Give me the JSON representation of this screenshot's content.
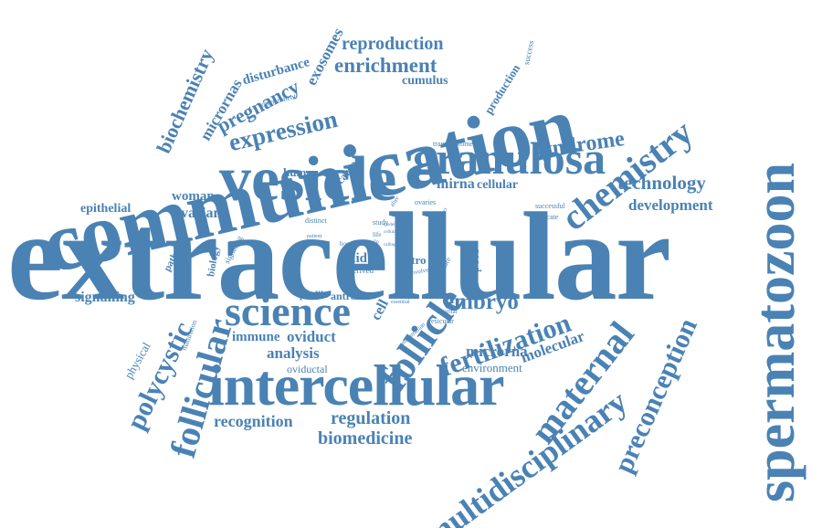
{
  "word_color": "#4a82b4",
  "background_color": "#ffffff",
  "words": [
    {
      "id": "extracellular",
      "text": "extracellular"
    },
    {
      "id": "communication",
      "text": "communication"
    },
    {
      "id": "spermatozoon",
      "text": "spermatozoon"
    },
    {
      "id": "intercellular",
      "text": "intercellular"
    },
    {
      "id": "vesicle",
      "text": "vesicle"
    },
    {
      "id": "granulosa",
      "text": "granulosa"
    },
    {
      "id": "chemistry",
      "text": "chemistry"
    },
    {
      "id": "science",
      "text": "science"
    },
    {
      "id": "follicle",
      "text": "follicle"
    },
    {
      "id": "follicular",
      "text": "follicular"
    },
    {
      "id": "maternal",
      "text": "maternal"
    },
    {
      "id": "multidisciplinary",
      "text": "multidisciplinary"
    },
    {
      "id": "preconception",
      "text": "preconception"
    },
    {
      "id": "fertilization",
      "text": "fertilization"
    },
    {
      "id": "polycystic",
      "text": "polycystic"
    },
    {
      "id": "expression",
      "text": "expression"
    },
    {
      "id": "enrichment",
      "text": "enrichment"
    },
    {
      "id": "reproduction",
      "text": "reproduction"
    },
    {
      "id": "syndrome",
      "text": "syndrome"
    },
    {
      "id": "embryo",
      "text": "embryo"
    },
    {
      "id": "technology",
      "text": "technology"
    },
    {
      "id": "development",
      "text": "development"
    },
    {
      "id": "biochemistry",
      "text": "biochemistry"
    },
    {
      "id": "micrornas",
      "text": "micrornas"
    },
    {
      "id": "pregnancy",
      "text": "pregnancy"
    },
    {
      "id": "disturbance",
      "text": "disturbance"
    },
    {
      "id": "exosomes",
      "text": "exosomes"
    },
    {
      "id": "cumulus",
      "text": "cumulus"
    },
    {
      "id": "production",
      "text": "production"
    },
    {
      "id": "success",
      "text": "success"
    },
    {
      "id": "compartment",
      "text": "compartment"
    },
    {
      "id": "transcriptome",
      "text": "transcriptome"
    },
    {
      "id": "mirna",
      "text": "mirna"
    },
    {
      "id": "cellular-1",
      "text": "cellular"
    },
    {
      "id": "human",
      "text": "human"
    },
    {
      "id": "cargo",
      "text": "cargo"
    },
    {
      "id": "woman",
      "text": "woman"
    },
    {
      "id": "ovarian",
      "text": "ovarian"
    },
    {
      "id": "epithelial",
      "text": "epithelial"
    },
    {
      "id": "pathway",
      "text": "pathway"
    },
    {
      "id": "biology",
      "text": "biology"
    },
    {
      "id": "signaling",
      "text": "signaling"
    },
    {
      "id": "signalling",
      "text": "signalling"
    },
    {
      "id": "physical",
      "text": "physical"
    },
    {
      "id": "maturation",
      "text": "maturation"
    },
    {
      "id": "profile",
      "text": "profile"
    },
    {
      "id": "antral",
      "text": "antral"
    },
    {
      "id": "fluid",
      "text": "fluid"
    },
    {
      "id": "derived",
      "text": "derived"
    },
    {
      "id": "vitro",
      "text": "vitro"
    },
    {
      "id": "involved",
      "text": "involved"
    },
    {
      "id": "culture",
      "text": "culture"
    },
    {
      "id": "pcos",
      "text": "pcos"
    },
    {
      "id": "cell",
      "text": "cell"
    },
    {
      "id": "immune",
      "text": "immune"
    },
    {
      "id": "oviduct",
      "text": "oviduct"
    },
    {
      "id": "analysis",
      "text": "analysis"
    },
    {
      "id": "oviductal",
      "text": "oviductal"
    },
    {
      "id": "recognition",
      "text": "recognition"
    },
    {
      "id": "regulation",
      "text": "regulation"
    },
    {
      "id": "biomedicine",
      "text": "biomedicine"
    },
    {
      "id": "microrna",
      "text": "microrna"
    },
    {
      "id": "environment",
      "text": "environment"
    },
    {
      "id": "molecular",
      "text": "molecular"
    },
    {
      "id": "mammalian",
      "text": "mammalian"
    },
    {
      "id": "vesicular",
      "text": "vesicular"
    },
    {
      "id": "external",
      "text": "external"
    },
    {
      "id": "essential",
      "text": "essential"
    },
    {
      "id": "successful",
      "text": "successful"
    },
    {
      "id": "indicate",
      "text": "indicate"
    },
    {
      "id": "ovaries",
      "text": "ovaries"
    },
    {
      "id": "contact",
      "text": "contact"
    },
    {
      "id": "distinct",
      "text": "distinct"
    },
    {
      "id": "patient",
      "text": "patient"
    },
    {
      "id": "study",
      "text": "study"
    },
    {
      "id": "boecs",
      "text": "boecs"
    },
    {
      "id": "role",
      "text": "role"
    },
    {
      "id": "life",
      "text": "life"
    },
    {
      "id": "alter",
      "text": "alter"
    },
    {
      "id": "model",
      "text": "model"
    },
    {
      "id": "cellular-2",
      "text": "cellular"
    },
    {
      "id": "calling",
      "text": "calling"
    }
  ]
}
